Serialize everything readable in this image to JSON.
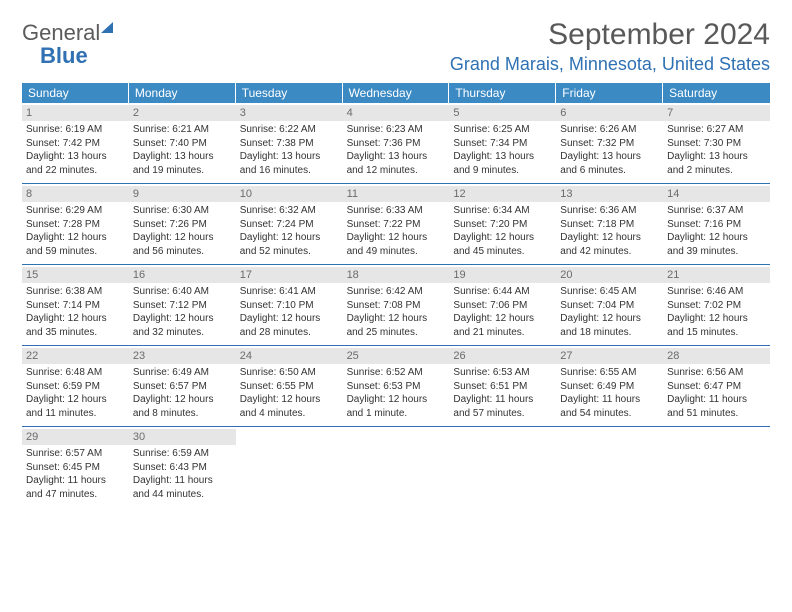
{
  "logo": {
    "general": "General",
    "blue": "Blue"
  },
  "header": {
    "month_title": "September 2024",
    "location": "Grand Marais, Minnesota, United States"
  },
  "dow": [
    "Sunday",
    "Monday",
    "Tuesday",
    "Wednesday",
    "Thursday",
    "Friday",
    "Saturday"
  ],
  "colors": {
    "header_bar": "#3b8ac4",
    "accent": "#2f71b3",
    "daynum_bg": "#e6e6e6",
    "text": "#333333"
  },
  "weeks": [
    [
      {
        "day": "1",
        "sunrise": "Sunrise: 6:19 AM",
        "sunset": "Sunset: 7:42 PM",
        "daylight": "Daylight: 13 hours and 22 minutes."
      },
      {
        "day": "2",
        "sunrise": "Sunrise: 6:21 AM",
        "sunset": "Sunset: 7:40 PM",
        "daylight": "Daylight: 13 hours and 19 minutes."
      },
      {
        "day": "3",
        "sunrise": "Sunrise: 6:22 AM",
        "sunset": "Sunset: 7:38 PM",
        "daylight": "Daylight: 13 hours and 16 minutes."
      },
      {
        "day": "4",
        "sunrise": "Sunrise: 6:23 AM",
        "sunset": "Sunset: 7:36 PM",
        "daylight": "Daylight: 13 hours and 12 minutes."
      },
      {
        "day": "5",
        "sunrise": "Sunrise: 6:25 AM",
        "sunset": "Sunset: 7:34 PM",
        "daylight": "Daylight: 13 hours and 9 minutes."
      },
      {
        "day": "6",
        "sunrise": "Sunrise: 6:26 AM",
        "sunset": "Sunset: 7:32 PM",
        "daylight": "Daylight: 13 hours and 6 minutes."
      },
      {
        "day": "7",
        "sunrise": "Sunrise: 6:27 AM",
        "sunset": "Sunset: 7:30 PM",
        "daylight": "Daylight: 13 hours and 2 minutes."
      }
    ],
    [
      {
        "day": "8",
        "sunrise": "Sunrise: 6:29 AM",
        "sunset": "Sunset: 7:28 PM",
        "daylight": "Daylight: 12 hours and 59 minutes."
      },
      {
        "day": "9",
        "sunrise": "Sunrise: 6:30 AM",
        "sunset": "Sunset: 7:26 PM",
        "daylight": "Daylight: 12 hours and 56 minutes."
      },
      {
        "day": "10",
        "sunrise": "Sunrise: 6:32 AM",
        "sunset": "Sunset: 7:24 PM",
        "daylight": "Daylight: 12 hours and 52 minutes."
      },
      {
        "day": "11",
        "sunrise": "Sunrise: 6:33 AM",
        "sunset": "Sunset: 7:22 PM",
        "daylight": "Daylight: 12 hours and 49 minutes."
      },
      {
        "day": "12",
        "sunrise": "Sunrise: 6:34 AM",
        "sunset": "Sunset: 7:20 PM",
        "daylight": "Daylight: 12 hours and 45 minutes."
      },
      {
        "day": "13",
        "sunrise": "Sunrise: 6:36 AM",
        "sunset": "Sunset: 7:18 PM",
        "daylight": "Daylight: 12 hours and 42 minutes."
      },
      {
        "day": "14",
        "sunrise": "Sunrise: 6:37 AM",
        "sunset": "Sunset: 7:16 PM",
        "daylight": "Daylight: 12 hours and 39 minutes."
      }
    ],
    [
      {
        "day": "15",
        "sunrise": "Sunrise: 6:38 AM",
        "sunset": "Sunset: 7:14 PM",
        "daylight": "Daylight: 12 hours and 35 minutes."
      },
      {
        "day": "16",
        "sunrise": "Sunrise: 6:40 AM",
        "sunset": "Sunset: 7:12 PM",
        "daylight": "Daylight: 12 hours and 32 minutes."
      },
      {
        "day": "17",
        "sunrise": "Sunrise: 6:41 AM",
        "sunset": "Sunset: 7:10 PM",
        "daylight": "Daylight: 12 hours and 28 minutes."
      },
      {
        "day": "18",
        "sunrise": "Sunrise: 6:42 AM",
        "sunset": "Sunset: 7:08 PM",
        "daylight": "Daylight: 12 hours and 25 minutes."
      },
      {
        "day": "19",
        "sunrise": "Sunrise: 6:44 AM",
        "sunset": "Sunset: 7:06 PM",
        "daylight": "Daylight: 12 hours and 21 minutes."
      },
      {
        "day": "20",
        "sunrise": "Sunrise: 6:45 AM",
        "sunset": "Sunset: 7:04 PM",
        "daylight": "Daylight: 12 hours and 18 minutes."
      },
      {
        "day": "21",
        "sunrise": "Sunrise: 6:46 AM",
        "sunset": "Sunset: 7:02 PM",
        "daylight": "Daylight: 12 hours and 15 minutes."
      }
    ],
    [
      {
        "day": "22",
        "sunrise": "Sunrise: 6:48 AM",
        "sunset": "Sunset: 6:59 PM",
        "daylight": "Daylight: 12 hours and 11 minutes."
      },
      {
        "day": "23",
        "sunrise": "Sunrise: 6:49 AM",
        "sunset": "Sunset: 6:57 PM",
        "daylight": "Daylight: 12 hours and 8 minutes."
      },
      {
        "day": "24",
        "sunrise": "Sunrise: 6:50 AM",
        "sunset": "Sunset: 6:55 PM",
        "daylight": "Daylight: 12 hours and 4 minutes."
      },
      {
        "day": "25",
        "sunrise": "Sunrise: 6:52 AM",
        "sunset": "Sunset: 6:53 PM",
        "daylight": "Daylight: 12 hours and 1 minute."
      },
      {
        "day": "26",
        "sunrise": "Sunrise: 6:53 AM",
        "sunset": "Sunset: 6:51 PM",
        "daylight": "Daylight: 11 hours and 57 minutes."
      },
      {
        "day": "27",
        "sunrise": "Sunrise: 6:55 AM",
        "sunset": "Sunset: 6:49 PM",
        "daylight": "Daylight: 11 hours and 54 minutes."
      },
      {
        "day": "28",
        "sunrise": "Sunrise: 6:56 AM",
        "sunset": "Sunset: 6:47 PM",
        "daylight": "Daylight: 11 hours and 51 minutes."
      }
    ],
    [
      {
        "day": "29",
        "sunrise": "Sunrise: 6:57 AM",
        "sunset": "Sunset: 6:45 PM",
        "daylight": "Daylight: 11 hours and 47 minutes."
      },
      {
        "day": "30",
        "sunrise": "Sunrise: 6:59 AM",
        "sunset": "Sunset: 6:43 PM",
        "daylight": "Daylight: 11 hours and 44 minutes."
      },
      null,
      null,
      null,
      null,
      null
    ]
  ]
}
